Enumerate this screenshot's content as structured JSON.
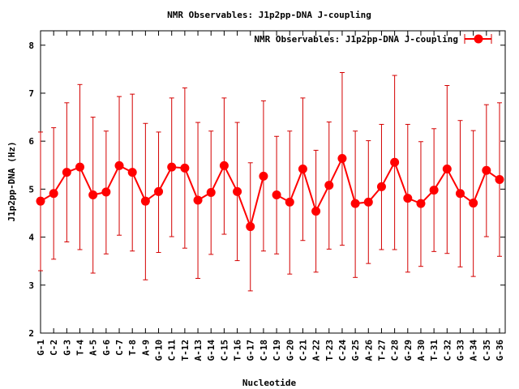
{
  "chart_data": {
    "type": "line",
    "title": "NMR Observables: J1p2pp-DNA J-coupling",
    "xlabel": "Nucleotide",
    "ylabel": "J1p2pp-DNA (Hz)",
    "ylim": [
      2,
      8.3
    ],
    "yticks": [
      "2",
      "3",
      "4",
      "5",
      "6",
      "7",
      "8"
    ],
    "legend_position": "top-right",
    "grid": false,
    "colors": {
      "series": "#ff0000",
      "error": "#d40000",
      "axis": "#000000"
    },
    "categories": [
      "G-1",
      "C-2",
      "G-3",
      "T-4",
      "A-5",
      "G-6",
      "C-7",
      "T-8",
      "A-9",
      "G-10",
      "C-11",
      "T-12",
      "A-13",
      "G-14",
      "C-15",
      "T-16",
      "G-17",
      "C-18",
      "C-19",
      "G-20",
      "C-21",
      "A-22",
      "T-23",
      "C-24",
      "G-25",
      "A-26",
      "T-27",
      "C-28",
      "G-29",
      "A-30",
      "T-31",
      "C-32",
      "G-33",
      "A-34",
      "C-35",
      "G-36"
    ],
    "series": [
      {
        "name": "NMR Observables: J1p2pp-DNA J-coupling",
        "values": [
          4.75,
          4.91,
          5.35,
          5.46,
          4.88,
          4.94,
          5.49,
          5.35,
          4.75,
          4.95,
          5.46,
          5.44,
          4.77,
          4.93,
          5.49,
          4.95,
          4.22,
          5.27,
          4.88,
          4.73,
          5.42,
          4.54,
          5.08,
          5.64,
          4.7,
          4.73,
          5.05,
          5.56,
          4.81,
          4.7,
          4.98,
          5.42,
          4.91,
          4.71,
          5.39,
          5.2
        ],
        "error_low": [
          3.3,
          3.54,
          3.9,
          3.74,
          3.25,
          3.65,
          4.04,
          3.71,
          3.11,
          3.68,
          4.01,
          3.77,
          3.14,
          3.64,
          4.06,
          3.51,
          2.88,
          3.71,
          3.65,
          3.23,
          3.93,
          3.27,
          3.75,
          3.83,
          3.16,
          3.45,
          3.74,
          3.74,
          3.27,
          3.39,
          3.7,
          3.66,
          3.38,
          3.18,
          4.01,
          3.6
        ],
        "error_high": [
          6.19,
          6.28,
          6.8,
          7.18,
          6.5,
          6.21,
          6.93,
          6.98,
          6.37,
          6.19,
          6.9,
          7.11,
          6.39,
          6.21,
          6.9,
          6.39,
          5.55,
          6.84,
          6.1,
          6.21,
          6.9,
          5.81,
          6.4,
          7.43,
          6.21,
          6.01,
          6.35,
          7.37,
          6.35,
          5.99,
          6.26,
          7.16,
          6.43,
          6.22,
          6.76,
          6.8
        ],
        "break_after": "C-18"
      }
    ]
  }
}
